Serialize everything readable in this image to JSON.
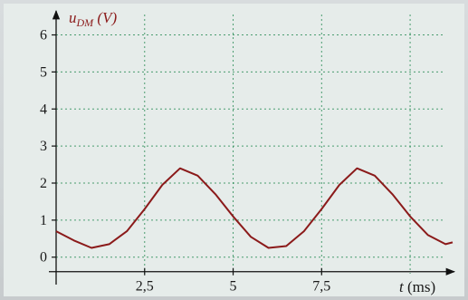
{
  "chart_data": {
    "type": "line",
    "ylabel": {
      "var": "u",
      "sub": "DM",
      "unit": " (V)"
    },
    "xlabel": {
      "var": "t",
      "unit": " (ms)"
    },
    "xlim": [
      0,
      11.2
    ],
    "ylim": [
      -0.3,
      6.6
    ],
    "x_ticks": [
      {
        "value": 2.5,
        "label": "2,5"
      },
      {
        "value": 5,
        "label": "5"
      },
      {
        "value": 7.5,
        "label": "7,5"
      }
    ],
    "y_ticks": [
      {
        "value": 0,
        "label": "0"
      },
      {
        "value": 1,
        "label": "1"
      },
      {
        "value": 2,
        "label": "2"
      },
      {
        "value": 3,
        "label": "3"
      },
      {
        "value": 4,
        "label": "4"
      },
      {
        "value": 5,
        "label": "5"
      },
      {
        "value": 6,
        "label": "6"
      }
    ],
    "x_grid": [
      2.5,
      5,
      7.5,
      10
    ],
    "grid": true,
    "series": [
      {
        "color": "#8b1a1a",
        "x": [
          0,
          0.5,
          1,
          1.5,
          2,
          2.5,
          3,
          3.5,
          4,
          4.5,
          5,
          5.5,
          6,
          6.5,
          7,
          7.5,
          8,
          8.5,
          9,
          9.5,
          10,
          10.5,
          11,
          11.2
        ],
        "y": [
          0.7,
          0.45,
          0.25,
          0.35,
          0.7,
          1.3,
          1.95,
          2.4,
          2.2,
          1.7,
          1.1,
          0.55,
          0.25,
          0.3,
          0.7,
          1.3,
          1.95,
          2.4,
          2.2,
          1.7,
          1.1,
          0.6,
          0.35,
          0.4
        ]
      }
    ]
  }
}
